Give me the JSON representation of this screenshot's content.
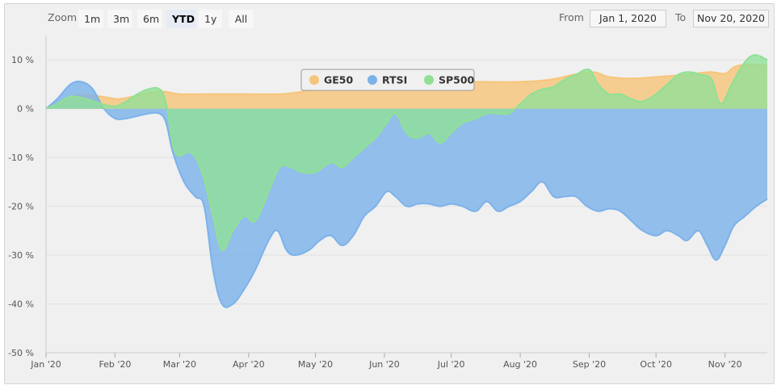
{
  "toolbar": {
    "zoom_label": "Zoom",
    "zoom_buttons": [
      "1m",
      "3m",
      "6m",
      "YTD",
      "1y",
      "All"
    ],
    "active_zoom": "YTD",
    "from_label": "From",
    "from_value": "Jan 1, 2020",
    "to_label": "To",
    "to_value": "Nov 20, 2020"
  },
  "colors": {
    "GE50": "#f7c57a",
    "RTSI": "#7cb2ea",
    "SP500": "#90e096",
    "chart_background": "#f0f0f0"
  },
  "chart_data": {
    "type": "area",
    "title": "",
    "xlabel": "",
    "ylabel": "",
    "x_ticks": [
      "Jan '20",
      "Feb '20",
      "Mar '20",
      "Apr '20",
      "May '20",
      "Jun '20",
      "Jul '20",
      "Aug '20",
      "Sep '20",
      "Oct '20",
      "Nov '20"
    ],
    "y_ticks": [
      "10 %",
      "0 %",
      "-10 %",
      "-20 %",
      "-30 %",
      "-40 %",
      "-50 %"
    ],
    "ylim": [
      -50,
      10
    ],
    "xlim": [
      "2020-01-01",
      "2020-11-20"
    ],
    "grid": true,
    "legend_placement": "top-center",
    "series": [
      {
        "name": "GE50",
        "points": [
          [
            "2020-01-01",
            0
          ],
          [
            "2020-01-06",
            1
          ],
          [
            "2020-01-12",
            2.5
          ],
          [
            "2020-01-19",
            2.8
          ],
          [
            "2020-01-26",
            2.5
          ],
          [
            "2020-02-02",
            2
          ],
          [
            "2020-02-09",
            2.5
          ],
          [
            "2020-02-16",
            3.3
          ],
          [
            "2020-02-23",
            3.5
          ],
          [
            "2020-03-01",
            3
          ],
          [
            "2020-03-15",
            3
          ],
          [
            "2020-04-01",
            3
          ],
          [
            "2020-04-15",
            3
          ],
          [
            "2020-04-25",
            3.5
          ],
          [
            "2020-05-01",
            4.5
          ],
          [
            "2020-05-15",
            4.5
          ],
          [
            "2020-06-01",
            5
          ],
          [
            "2020-06-15",
            5
          ],
          [
            "2020-07-01",
            5.5
          ],
          [
            "2020-07-15",
            5.5
          ],
          [
            "2020-08-01",
            5.5
          ],
          [
            "2020-08-15",
            6
          ],
          [
            "2020-09-01",
            7.5
          ],
          [
            "2020-09-10",
            6.5
          ],
          [
            "2020-09-20",
            6.2
          ],
          [
            "2020-10-01",
            6.5
          ],
          [
            "2020-10-15",
            7
          ],
          [
            "2020-10-25",
            7.5
          ],
          [
            "2020-11-01",
            7.2
          ],
          [
            "2020-11-05",
            8.5
          ],
          [
            "2020-11-10",
            9
          ],
          [
            "2020-11-20",
            9
          ]
        ]
      },
      {
        "name": "RTSI",
        "points": [
          [
            "2020-01-01",
            0
          ],
          [
            "2020-01-06",
            2
          ],
          [
            "2020-01-12",
            5
          ],
          [
            "2020-01-17",
            5.5
          ],
          [
            "2020-01-22",
            4
          ],
          [
            "2020-01-27",
            0
          ],
          [
            "2020-02-01",
            -2
          ],
          [
            "2020-02-06",
            -2
          ],
          [
            "2020-02-11",
            -1.5
          ],
          [
            "2020-02-16",
            -1
          ],
          [
            "2020-02-21",
            -1
          ],
          [
            "2020-02-24",
            -3
          ],
          [
            "2020-02-27",
            -9
          ],
          [
            "2020-03-03",
            -15
          ],
          [
            "2020-03-08",
            -18
          ],
          [
            "2020-03-12",
            -20
          ],
          [
            "2020-03-16",
            -33
          ],
          [
            "2020-03-20",
            -40
          ],
          [
            "2020-03-25",
            -40
          ],
          [
            "2020-03-30",
            -37
          ],
          [
            "2020-04-04",
            -33
          ],
          [
            "2020-04-10",
            -27
          ],
          [
            "2020-04-14",
            -25
          ],
          [
            "2020-04-18",
            -29
          ],
          [
            "2020-04-22",
            -30
          ],
          [
            "2020-04-28",
            -29
          ],
          [
            "2020-05-03",
            -27
          ],
          [
            "2020-05-08",
            -26
          ],
          [
            "2020-05-13",
            -28
          ],
          [
            "2020-05-18",
            -26
          ],
          [
            "2020-05-23",
            -22
          ],
          [
            "2020-05-28",
            -20
          ],
          [
            "2020-06-02",
            -17
          ],
          [
            "2020-06-06",
            -18
          ],
          [
            "2020-06-11",
            -20
          ],
          [
            "2020-06-16",
            -19.5
          ],
          [
            "2020-06-21",
            -19.5
          ],
          [
            "2020-06-26",
            -20
          ],
          [
            "2020-07-01",
            -19.5
          ],
          [
            "2020-07-06",
            -20
          ],
          [
            "2020-07-12",
            -21
          ],
          [
            "2020-07-17",
            -19
          ],
          [
            "2020-07-22",
            -21
          ],
          [
            "2020-07-27",
            -20
          ],
          [
            "2020-08-01",
            -19
          ],
          [
            "2020-08-06",
            -17
          ],
          [
            "2020-08-11",
            -15
          ],
          [
            "2020-08-16",
            -18
          ],
          [
            "2020-08-21",
            -18
          ],
          [
            "2020-08-26",
            -18
          ],
          [
            "2020-08-31",
            -20
          ],
          [
            "2020-09-05",
            -21
          ],
          [
            "2020-09-10",
            -20.5
          ],
          [
            "2020-09-15",
            -21
          ],
          [
            "2020-09-20",
            -23
          ],
          [
            "2020-09-25",
            -25
          ],
          [
            "2020-10-01",
            -26
          ],
          [
            "2020-10-06",
            -25
          ],
          [
            "2020-10-11",
            -26
          ],
          [
            "2020-10-15",
            -27
          ],
          [
            "2020-10-20",
            -25
          ],
          [
            "2020-10-24",
            -28
          ],
          [
            "2020-10-28",
            -31
          ],
          [
            "2020-11-01",
            -28
          ],
          [
            "2020-11-05",
            -24
          ],
          [
            "2020-11-10",
            -22
          ],
          [
            "2020-11-15",
            -20
          ],
          [
            "2020-11-20",
            -18.5
          ]
        ]
      },
      {
        "name": "SP500",
        "points": [
          [
            "2020-01-01",
            0
          ],
          [
            "2020-01-06",
            1
          ],
          [
            "2020-01-12",
            2.5
          ],
          [
            "2020-01-19",
            2
          ],
          [
            "2020-01-26",
            1
          ],
          [
            "2020-02-01",
            0.5
          ],
          [
            "2020-02-06",
            1.5
          ],
          [
            "2020-02-11",
            3
          ],
          [
            "2020-02-16",
            4
          ],
          [
            "2020-02-21",
            4
          ],
          [
            "2020-02-24",
            1
          ],
          [
            "2020-02-28",
            -9
          ],
          [
            "2020-03-06",
            -9
          ],
          [
            "2020-03-11",
            -13
          ],
          [
            "2020-03-16",
            -22
          ],
          [
            "2020-03-20",
            -29
          ],
          [
            "2020-03-25",
            -25
          ],
          [
            "2020-03-30",
            -22
          ],
          [
            "2020-04-04",
            -23
          ],
          [
            "2020-04-10",
            -17
          ],
          [
            "2020-04-15",
            -12
          ],
          [
            "2020-04-20",
            -12
          ],
          [
            "2020-04-25",
            -13
          ],
          [
            "2020-05-01",
            -13
          ],
          [
            "2020-05-08",
            -11
          ],
          [
            "2020-05-13",
            -12
          ],
          [
            "2020-05-18",
            -10
          ],
          [
            "2020-05-23",
            -8
          ],
          [
            "2020-05-28",
            -6
          ],
          [
            "2020-06-02",
            -3
          ],
          [
            "2020-06-06",
            -1
          ],
          [
            "2020-06-11",
            -5
          ],
          [
            "2020-06-16",
            -6
          ],
          [
            "2020-06-21",
            -5
          ],
          [
            "2020-06-26",
            -7
          ],
          [
            "2020-07-01",
            -5
          ],
          [
            "2020-07-06",
            -3
          ],
          [
            "2020-07-12",
            -2
          ],
          [
            "2020-07-17",
            -1
          ],
          [
            "2020-07-22",
            -1
          ],
          [
            "2020-07-27",
            -1
          ],
          [
            "2020-08-01",
            1
          ],
          [
            "2020-08-06",
            3
          ],
          [
            "2020-08-11",
            4
          ],
          [
            "2020-08-16",
            4.5
          ],
          [
            "2020-08-21",
            6
          ],
          [
            "2020-08-26",
            7
          ],
          [
            "2020-09-01",
            8
          ],
          [
            "2020-09-05",
            5
          ],
          [
            "2020-09-10",
            3
          ],
          [
            "2020-09-15",
            3
          ],
          [
            "2020-09-20",
            2
          ],
          [
            "2020-09-25",
            1.5
          ],
          [
            "2020-10-01",
            3
          ],
          [
            "2020-10-06",
            5
          ],
          [
            "2020-10-11",
            7
          ],
          [
            "2020-10-16",
            7.5
          ],
          [
            "2020-10-21",
            7
          ],
          [
            "2020-10-26",
            6
          ],
          [
            "2020-10-30",
            1
          ],
          [
            "2020-11-04",
            5
          ],
          [
            "2020-11-09",
            9
          ],
          [
            "2020-11-14",
            11
          ],
          [
            "2020-11-20",
            10
          ]
        ]
      }
    ]
  }
}
